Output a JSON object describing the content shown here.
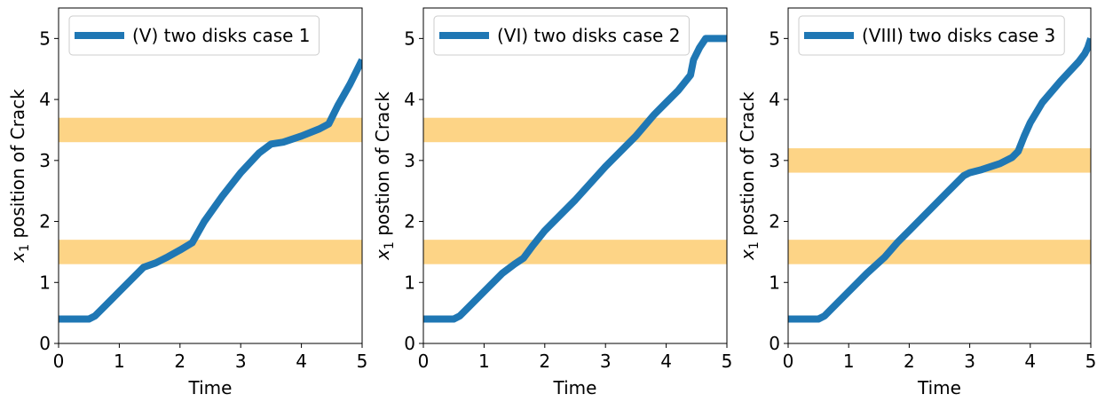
{
  "chart_data": [
    {
      "type": "line",
      "xlabel": "Time",
      "ylabel": "position of Crack",
      "ylabel_math": "x",
      "ylabel_sub": "1",
      "xlim": [
        0,
        5
      ],
      "ylim": [
        0,
        5.5
      ],
      "xticks": [
        "0",
        "1",
        "2",
        "3",
        "4",
        "5"
      ],
      "yticks": [
        "0",
        "1",
        "2",
        "3",
        "4",
        "5"
      ],
      "legend_position": "upper-left",
      "line_color": "#1f77b4",
      "band_color": "#fdd27f",
      "bands": [
        [
          1.3,
          1.7
        ],
        [
          3.3,
          3.7
        ]
      ],
      "series": [
        {
          "name": "(V) two disks case 1",
          "x": [
            0,
            0.5,
            0.6,
            0.7,
            1.0,
            1.4,
            1.6,
            1.8,
            2.0,
            2.2,
            2.4,
            2.7,
            3.0,
            3.3,
            3.5,
            3.7,
            4.0,
            4.3,
            4.45,
            4.6,
            4.8,
            5.0
          ],
          "y": [
            0.4,
            0.4,
            0.45,
            0.55,
            0.85,
            1.25,
            1.32,
            1.42,
            1.53,
            1.65,
            2.0,
            2.42,
            2.8,
            3.12,
            3.27,
            3.3,
            3.4,
            3.52,
            3.6,
            3.9,
            4.25,
            4.65
          ]
        }
      ]
    },
    {
      "type": "line",
      "xlabel": "Time",
      "ylabel": "postion of Crack",
      "ylabel_math": "x",
      "ylabel_sub": "1",
      "xlim": [
        0,
        5
      ],
      "ylim": [
        0,
        5.5
      ],
      "xticks": [
        "0",
        "1",
        "2",
        "3",
        "4",
        "5"
      ],
      "yticks": [
        "0",
        "1",
        "2",
        "3",
        "4",
        "5"
      ],
      "legend_position": "upper-left",
      "line_color": "#1f77b4",
      "band_color": "#fdd27f",
      "bands": [
        [
          1.3,
          1.7
        ],
        [
          3.3,
          3.7
        ]
      ],
      "series": [
        {
          "name": "(VI) two disks case 2",
          "x": [
            0,
            0.5,
            0.6,
            0.7,
            1.0,
            1.3,
            1.5,
            1.65,
            1.8,
            2.0,
            2.5,
            3.0,
            3.5,
            3.8,
            4.0,
            4.2,
            4.4,
            4.45,
            4.55,
            4.65,
            5.0
          ],
          "y": [
            0.4,
            0.4,
            0.45,
            0.55,
            0.85,
            1.15,
            1.3,
            1.4,
            1.6,
            1.85,
            2.35,
            2.9,
            3.4,
            3.75,
            3.95,
            4.15,
            4.4,
            4.65,
            4.85,
            5.0,
            5.0
          ]
        }
      ]
    },
    {
      "type": "line",
      "xlabel": "Time",
      "ylabel": "postion of Crack",
      "ylabel_math": "x",
      "ylabel_sub": "1",
      "xlim": [
        0,
        5
      ],
      "ylim": [
        0,
        5.5
      ],
      "xticks": [
        "0",
        "1",
        "2",
        "3",
        "4",
        "5"
      ],
      "yticks": [
        "0",
        "1",
        "2",
        "3",
        "4",
        "5"
      ],
      "legend_position": "upper-left",
      "line_color": "#1f77b4",
      "band_color": "#fdd27f",
      "bands": [
        [
          1.3,
          1.7
        ],
        [
          2.8,
          3.2
        ]
      ],
      "series": [
        {
          "name": "(VIII) two disks case 3",
          "x": [
            0,
            0.5,
            0.6,
            0.7,
            1.0,
            1.3,
            1.6,
            1.8,
            2.0,
            2.3,
            2.6,
            2.9,
            3.0,
            3.2,
            3.5,
            3.7,
            3.8,
            3.9,
            4.0,
            4.2,
            4.5,
            4.8,
            4.9,
            4.95,
            5.0
          ],
          "y": [
            0.4,
            0.4,
            0.45,
            0.55,
            0.85,
            1.15,
            1.42,
            1.65,
            1.85,
            2.15,
            2.45,
            2.75,
            2.8,
            2.85,
            2.95,
            3.05,
            3.15,
            3.4,
            3.62,
            3.95,
            4.3,
            4.62,
            4.75,
            4.85,
            5.0
          ]
        }
      ]
    }
  ]
}
